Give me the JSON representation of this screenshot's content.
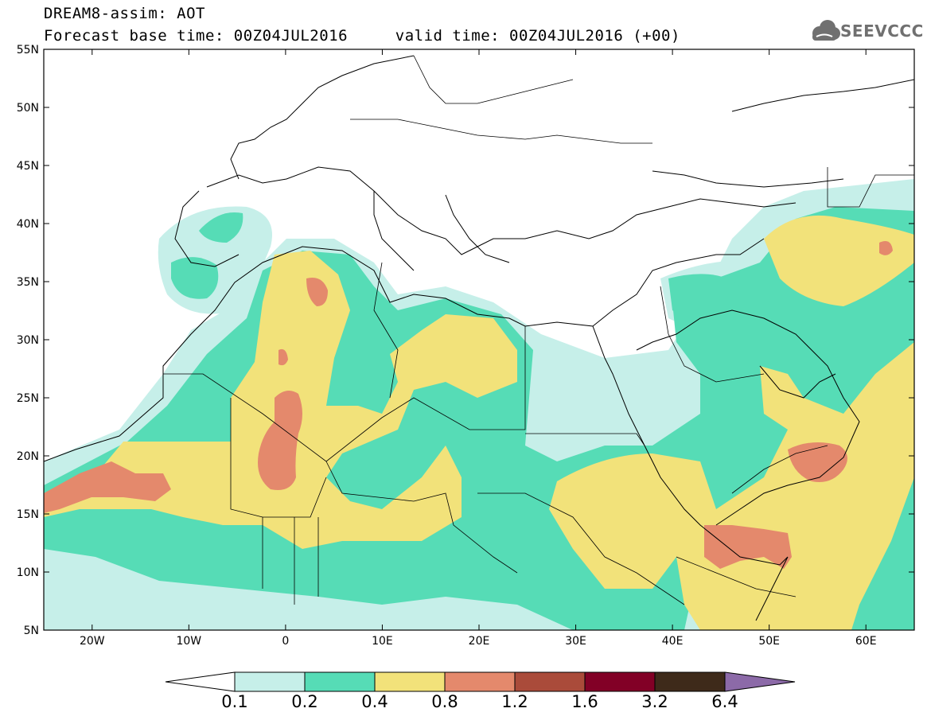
{
  "header": {
    "title": "DREAM8-assim: AOT",
    "base_time_label": "Forecast base time: 00Z04JUL2016",
    "valid_time_label": "valid time: 00Z04JUL2016 (+00)"
  },
  "logo": {
    "text": "SEEVCCC",
    "icon": "cloud-logo-icon"
  },
  "map": {
    "variable": "AOT",
    "lat_range": [
      5,
      55
    ],
    "lon_range": [
      -25,
      65
    ],
    "lat_ticks": [
      "55N",
      "50N",
      "45N",
      "40N",
      "35N",
      "30N",
      "25N",
      "20N",
      "15N",
      "10N",
      "5N"
    ],
    "lon_ticks": [
      "20W",
      "10W",
      "0",
      "10E",
      "20E",
      "30E",
      "40E",
      "50E",
      "60E"
    ]
  },
  "colorbar": {
    "labels": [
      "0.1",
      "0.2",
      "0.4",
      "0.8",
      "1.2",
      "1.6",
      "3.2",
      "6.4"
    ],
    "colors": [
      "#c6efe9",
      "#56dcb6",
      "#f2e27a",
      "#e4896c",
      "#aa4b3a",
      "#820026",
      "#3e2a1a",
      "#8c6aa8"
    ]
  }
}
